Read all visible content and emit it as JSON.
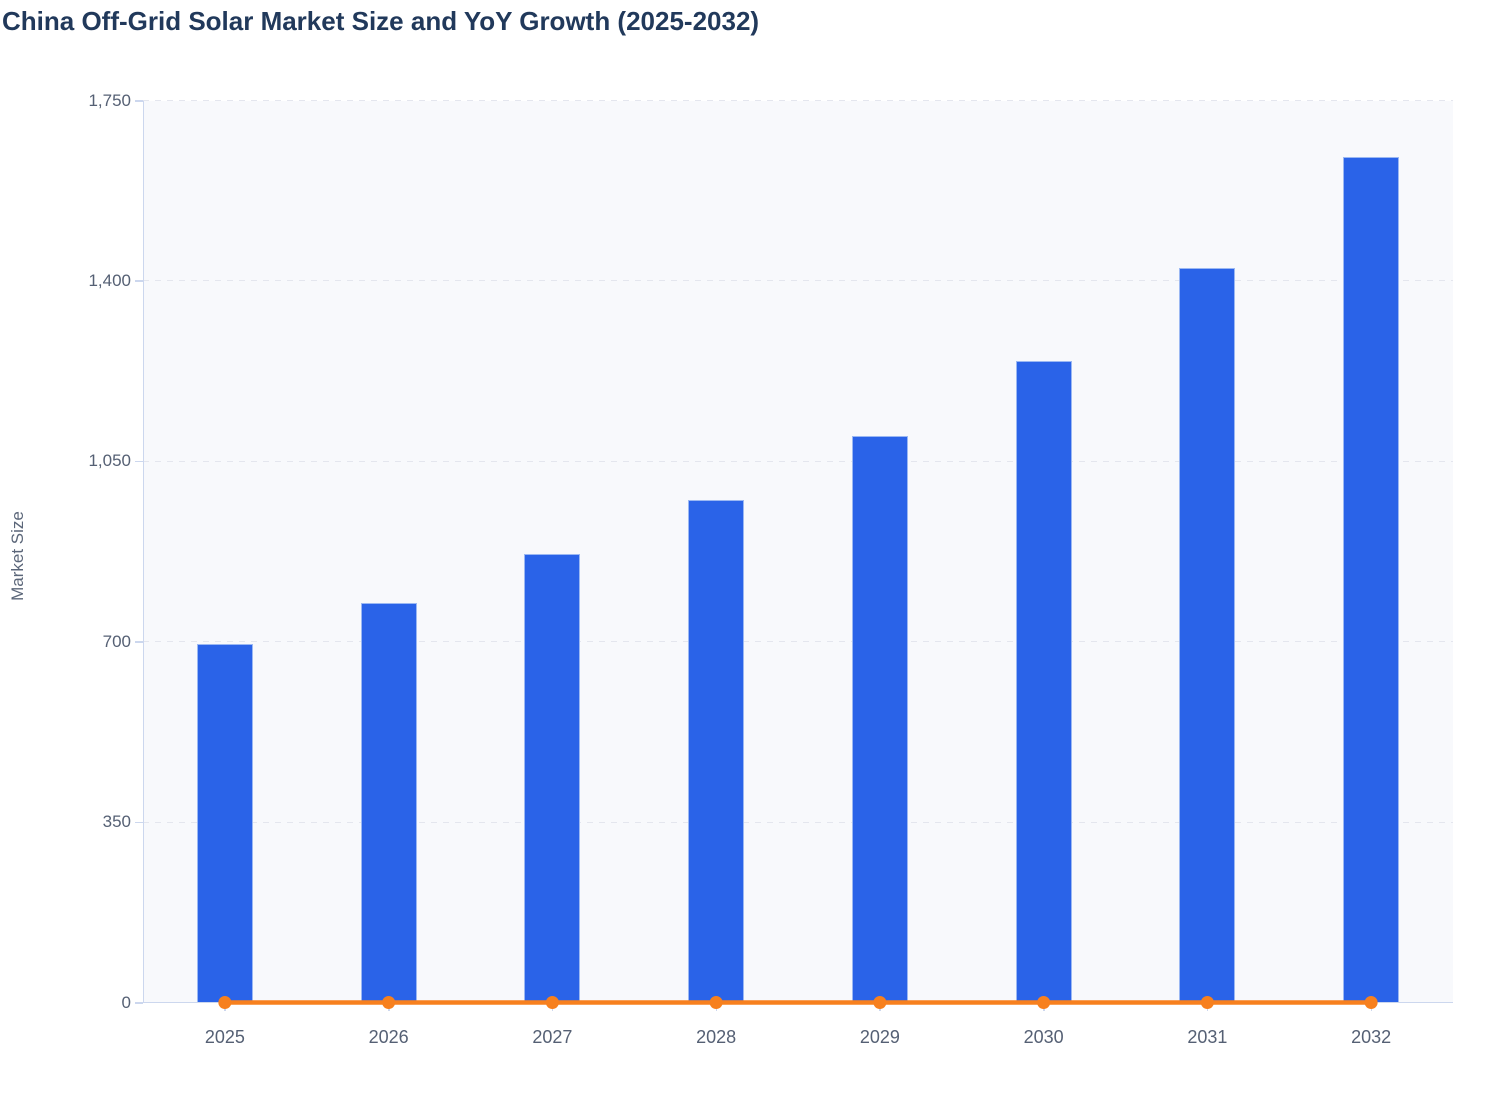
{
  "chart_data": {
    "type": "bar",
    "title": "China Off-Grid Solar Market Size and YoY Growth (2025-2032)",
    "ylabel": "Market Size",
    "xlabel": "",
    "categories": [
      "2025",
      "2026",
      "2027",
      "2028",
      "2029",
      "2030",
      "2031",
      "2032"
    ],
    "series": [
      {
        "name": "Market Size",
        "type": "bar",
        "values": [
          695,
          775,
          870,
          975,
          1100,
          1245,
          1425,
          1640
        ]
      },
      {
        "name": "YoY Growth",
        "type": "line",
        "values": [
          0,
          0,
          0,
          0,
          0,
          0,
          0,
          0
        ]
      }
    ],
    "ylim": [
      0,
      1750
    ],
    "yticks": [
      {
        "value": 0,
        "label": "0"
      },
      {
        "value": 350,
        "label": "350"
      },
      {
        "value": 700,
        "label": "700"
      },
      {
        "value": 1050,
        "label": "1,050"
      },
      {
        "value": 1400,
        "label": "1,400"
      },
      {
        "value": 1750,
        "label": "1,750"
      }
    ],
    "grid": "dashed-horizontal",
    "legend": "none"
  },
  "colors": {
    "bar_fill": "#2a63e8",
    "bar_border": "#9bb8f3",
    "line": "#f7801e",
    "title": "#21395b",
    "tick_label": "#556074",
    "axis_title": "#5b6679",
    "axis_line": "#ccd7ee",
    "gridline": "#e4e6ee",
    "plot_background": "#f8f9fc",
    "page_background": "#ffffff"
  }
}
